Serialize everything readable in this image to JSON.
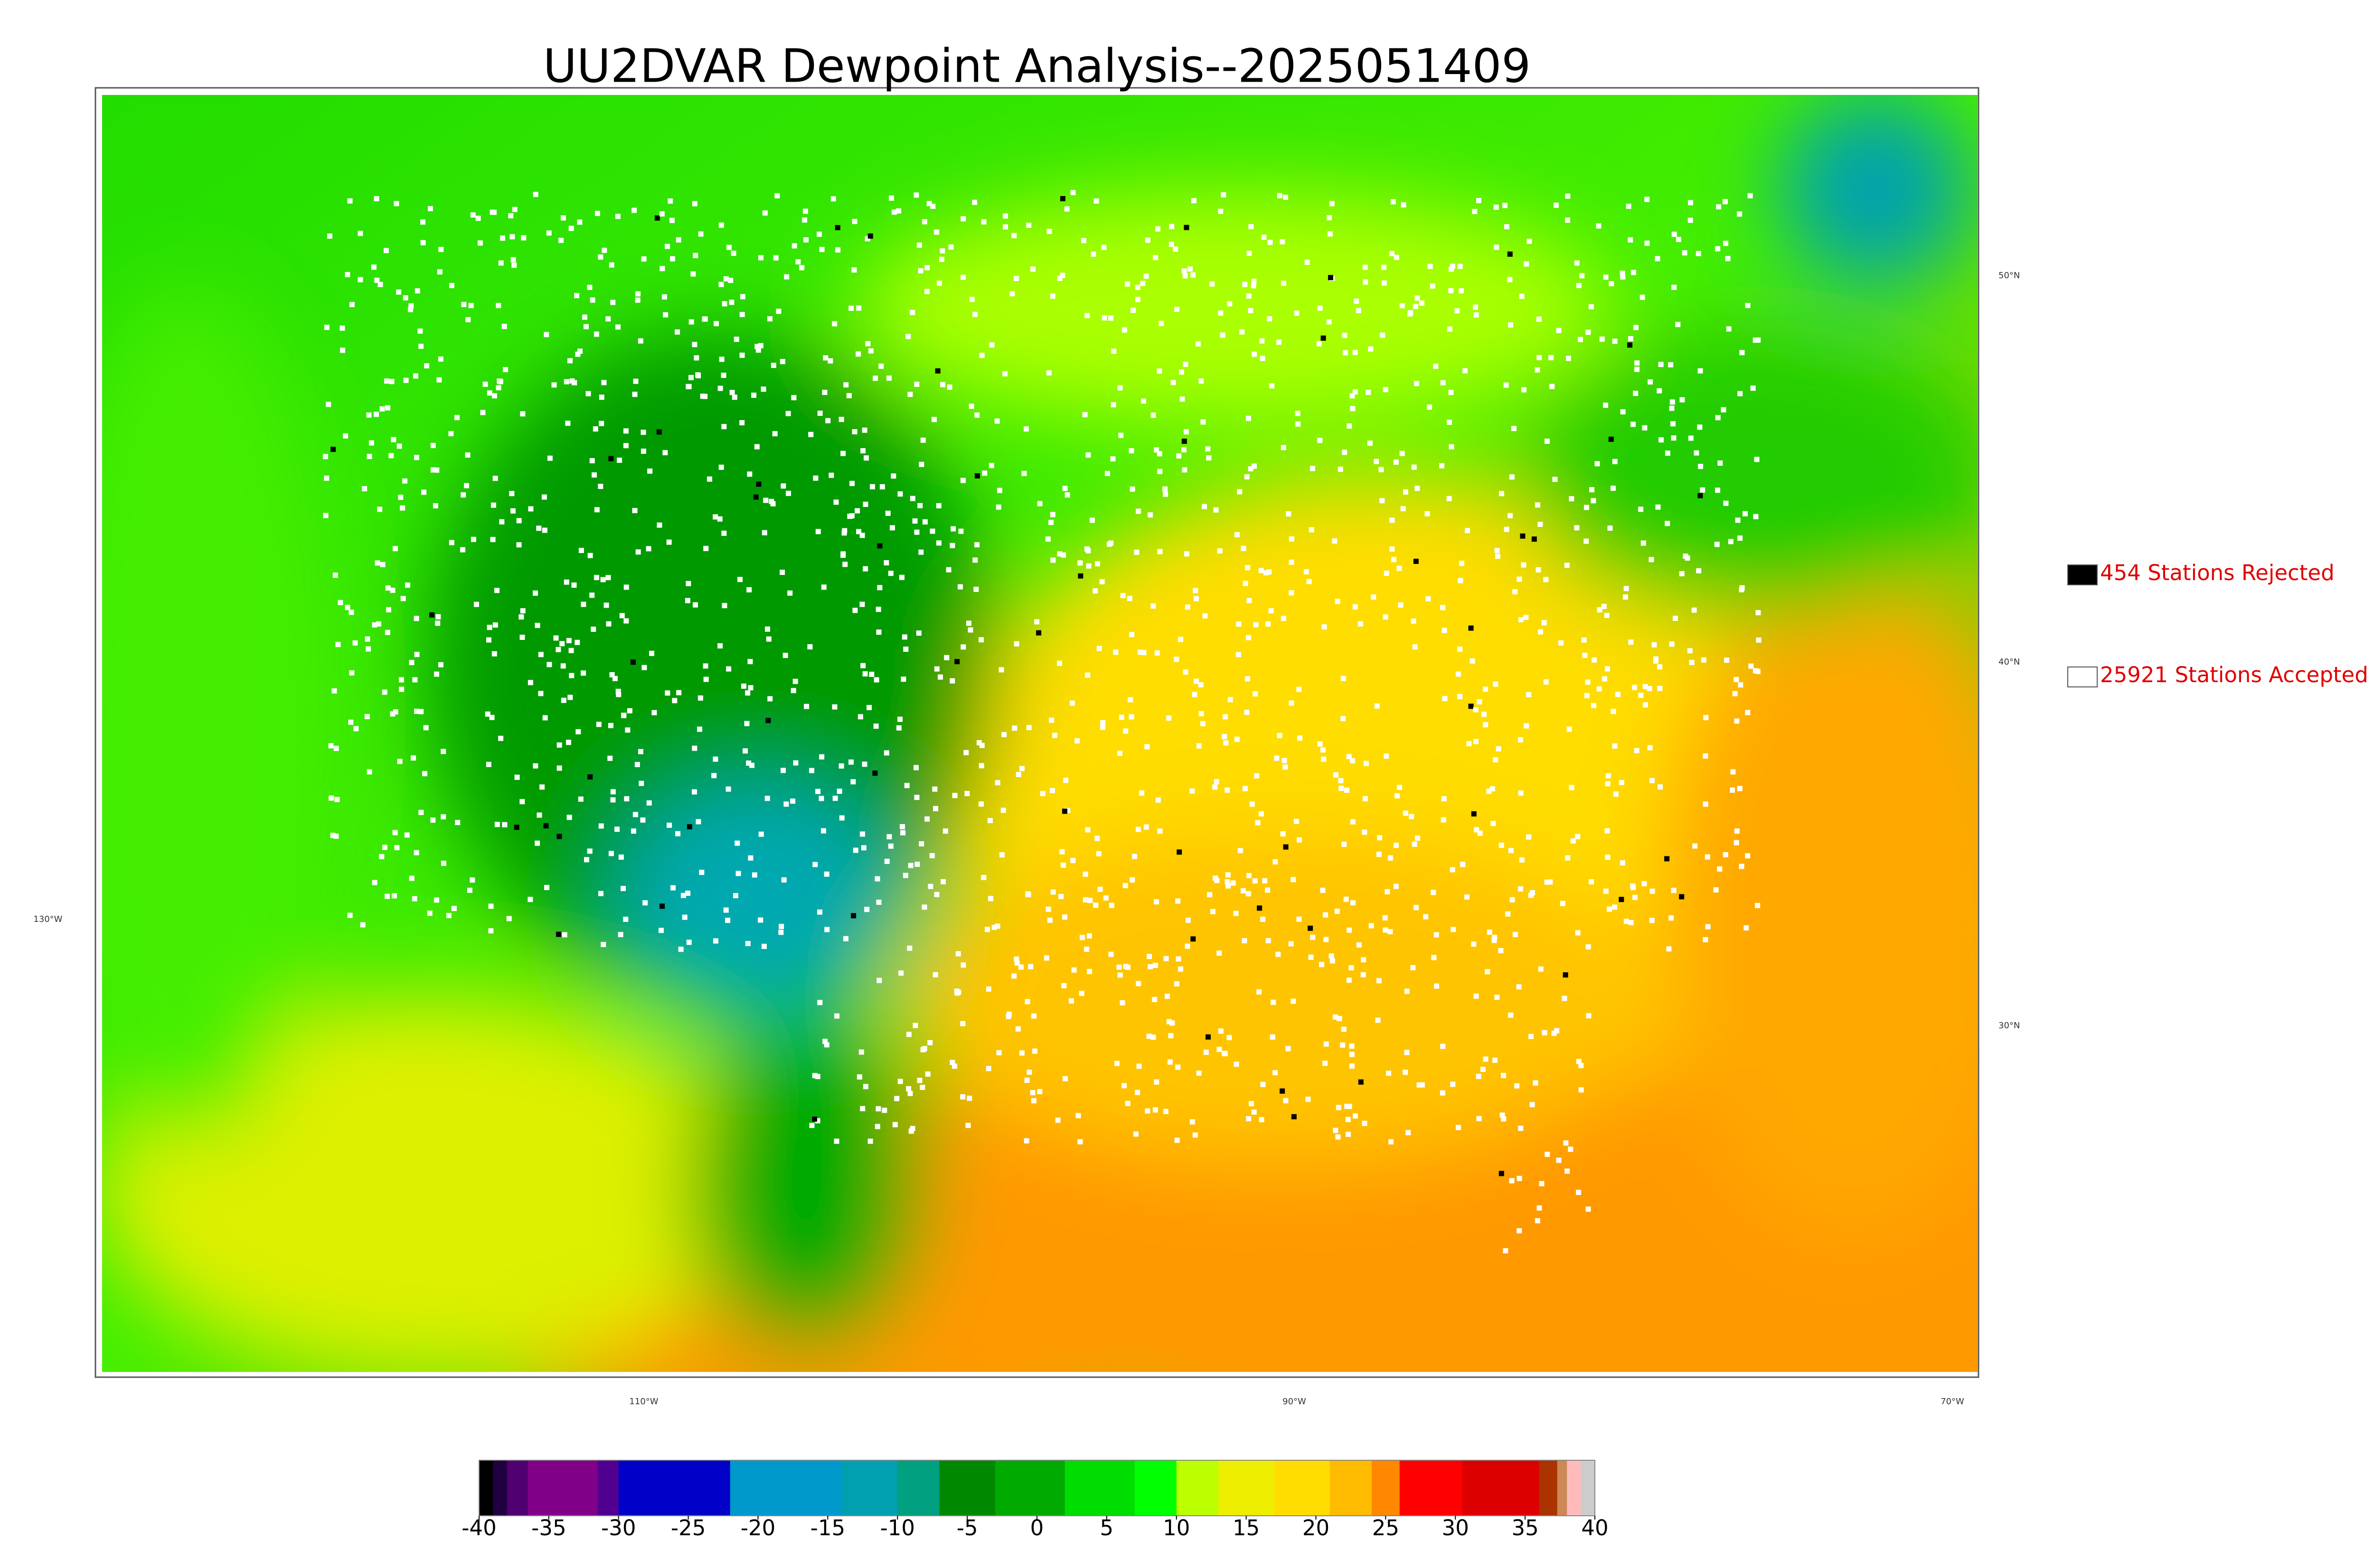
{
  "title": "UU2DVAR Dewpoint Analysis--2025051409",
  "legend": [
    {
      "label": "454 Stations Rejected",
      "color": "#000000"
    },
    {
      "label": "25921 Stations Accepted",
      "color": "#ffffff"
    }
  ],
  "gridlabels": {
    "lat": [
      "50°N",
      "40°N",
      "30°N"
    ],
    "lon": [
      "130°W",
      "110°W",
      "90°W",
      "70°W"
    ]
  },
  "colorbar": {
    "range": [
      -40,
      40
    ],
    "ticks": [
      -40,
      -35,
      -30,
      -25,
      -20,
      -15,
      -10,
      -5,
      0,
      5,
      10,
      15,
      20,
      25,
      30,
      35,
      40
    ],
    "segments": [
      {
        "from": -40,
        "to": -39,
        "color": "#000000"
      },
      {
        "from": -39,
        "to": -38,
        "color": "#200040"
      },
      {
        "from": -38,
        "to": -36.5,
        "color": "#500070"
      },
      {
        "from": -36.5,
        "to": -31.5,
        "color": "#800088"
      },
      {
        "from": -31.5,
        "to": -30,
        "color": "#500090"
      },
      {
        "from": -30,
        "to": -22,
        "color": "#0000c8"
      },
      {
        "from": -22,
        "to": -14,
        "color": "#0099cc"
      },
      {
        "from": -14,
        "to": -10,
        "color": "#00a0b0"
      },
      {
        "from": -10,
        "to": -7,
        "color": "#00a080"
      },
      {
        "from": -7,
        "to": -3,
        "color": "#008800"
      },
      {
        "from": -3,
        "to": 2,
        "color": "#00aa00"
      },
      {
        "from": 2,
        "to": 7,
        "color": "#00dd00"
      },
      {
        "from": 7,
        "to": 10,
        "color": "#00ff00"
      },
      {
        "from": 10,
        "to": 13,
        "color": "#bbff00"
      },
      {
        "from": 13,
        "to": 17,
        "color": "#eeee00"
      },
      {
        "from": 17,
        "to": 21,
        "color": "#ffdd00"
      },
      {
        "from": 21,
        "to": 24,
        "color": "#ffbb00"
      },
      {
        "from": 24,
        "to": 26,
        "color": "#ff8800"
      },
      {
        "from": 26,
        "to": 30.5,
        "color": "#ff0000"
      },
      {
        "from": 30.5,
        "to": 36,
        "color": "#dd0000"
      },
      {
        "from": 36,
        "to": 37.3,
        "color": "#aa3300"
      },
      {
        "from": 37.3,
        "to": 38,
        "color": "#cc8855"
      },
      {
        "from": 38,
        "to": 39,
        "color": "#ffbbbb"
      },
      {
        "from": 39,
        "to": 40,
        "color": "#cccccc"
      }
    ]
  }
}
